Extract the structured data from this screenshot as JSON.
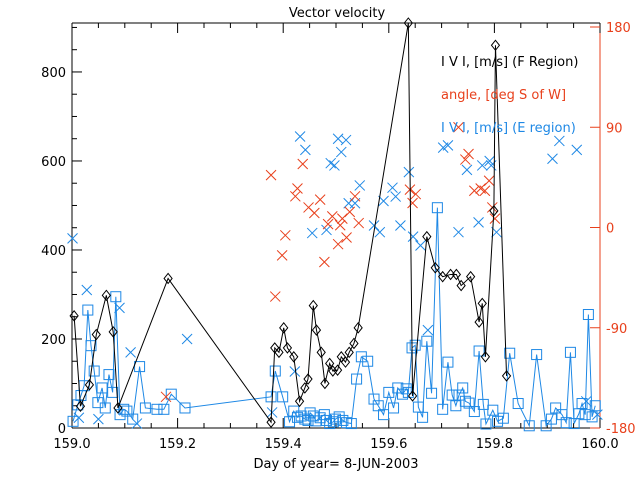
{
  "colors": {
    "f_region": "#000000",
    "angle": "#e8401c",
    "e_region": "#1e88e5"
  },
  "chart_data": {
    "type": "scatter",
    "title": "Vector velocity",
    "xlabel": "Day of year= 8-JUN-2003",
    "ylabel": "",
    "y2label": "",
    "xlim": [
      159.0,
      160.0
    ],
    "ylim": [
      0,
      910
    ],
    "y2lim": [
      -180,
      180
    ],
    "x_ticks": [
      "159.0",
      "159.2",
      "159.4",
      "159.6",
      "159.8",
      "160.0"
    ],
    "x_tick_values": [
      159.0,
      159.2,
      159.4,
      159.6,
      159.8,
      160.0
    ],
    "y_ticks": [
      "0",
      "200",
      "400",
      "600",
      "800"
    ],
    "y_tick_values": [
      0,
      200,
      400,
      600,
      800
    ],
    "y2_ticks": [
      "180",
      "90",
      "0",
      "-90",
      "-180"
    ],
    "y2_tick_values": [
      180,
      90,
      0,
      -90,
      -180
    ],
    "legend_position": "top-right",
    "legend": [
      {
        "label": "I V I, [m/s] (F Region)",
        "series": "f_region"
      },
      {
        "label": "angle, [deg S of W]",
        "series": "angle"
      },
      {
        "label": "I V I, [m/s] (E region)",
        "series": "e_region"
      }
    ],
    "series": [
      {
        "name": "I V I, [m/s] (F Region)",
        "key": "f_region",
        "axis": "left",
        "marker": "diamond",
        "line": true,
        "x": [
          159.004,
          159.016,
          159.033,
          159.046,
          159.065,
          159.078,
          159.087,
          159.182,
          159.377,
          159.384,
          159.392,
          159.401,
          159.408,
          159.42,
          159.431,
          159.441,
          159.447,
          159.457,
          159.463,
          159.472,
          159.479,
          159.488,
          159.494,
          159.503,
          159.51,
          159.518,
          159.525,
          159.534,
          159.542,
          159.637,
          159.645,
          159.672,
          159.688,
          159.702,
          159.717,
          159.728,
          159.737,
          159.755,
          159.771,
          159.777,
          159.783,
          159.799,
          159.802,
          159.823
        ],
        "y": [
          252,
          49,
          97,
          210,
          298,
          216,
          45,
          336,
          13,
          180,
          170,
          225,
          180,
          160,
          60,
          90,
          110,
          275,
          220,
          170,
          100,
          145,
          128,
          130,
          160,
          148,
          170,
          190,
          225,
          910,
          72,
          430,
          360,
          340,
          345,
          345,
          320,
          340,
          238,
          280,
          160,
          488,
          860,
          117
        ]
      },
      {
        "name": "angle, [deg S of W]",
        "key": "angle",
        "axis": "right",
        "marker": "x",
        "line": false,
        "x": [
          159.178,
          159.377,
          159.385,
          159.398,
          159.404,
          159.423,
          159.427,
          159.437,
          159.448,
          159.459,
          159.47,
          159.478,
          159.485,
          159.493,
          159.504,
          159.508,
          159.512,
          159.52,
          159.526,
          159.536,
          159.543,
          159.64,
          159.645,
          159.651,
          159.732,
          159.745,
          159.751,
          159.762,
          159.774,
          159.782,
          159.79,
          159.796,
          159.801
        ],
        "y": [
          -152,
          47,
          -62,
          -25,
          -7,
          28,
          35,
          57,
          18,
          13,
          25,
          -31,
          3,
          10,
          -15,
          2,
          8,
          -9,
          14,
          28,
          4,
          34,
          22,
          30,
          90,
          61,
          66,
          33,
          35,
          33,
          42,
          18,
          8
        ]
      },
      {
        "name": "I V I, [m/s] (E region)",
        "key": "e_region",
        "axis": "left",
        "marker": "square",
        "line": true,
        "x": [
          159.002,
          159.011,
          159.017,
          159.023,
          159.03,
          159.036,
          159.042,
          159.049,
          159.057,
          159.063,
          159.07,
          159.077,
          159.083,
          159.091,
          159.098,
          159.104,
          159.115,
          159.128,
          159.139,
          159.161,
          159.174,
          159.188,
          159.214,
          159.377,
          159.385,
          159.399,
          159.412,
          159.42,
          159.427,
          159.434,
          159.441,
          159.447,
          159.451,
          159.457,
          159.462,
          159.47,
          159.478,
          159.482,
          159.488,
          159.495,
          159.499,
          159.506,
          159.513,
          159.52,
          159.529,
          159.539,
          159.548,
          159.56,
          159.572,
          159.58,
          159.59,
          159.6,
          159.609,
          159.617,
          159.626,
          159.633,
          159.637,
          159.644,
          159.65,
          159.656,
          159.664,
          159.672,
          159.681,
          159.692,
          159.702,
          159.712,
          159.72,
          159.727,
          159.733,
          159.74,
          159.745,
          159.752,
          159.762,
          159.771,
          159.779,
          159.784,
          159.797,
          159.806,
          159.817,
          159.829,
          159.845,
          159.866,
          159.88,
          159.898,
          159.908,
          159.916,
          159.928,
          159.936,
          159.944,
          159.951,
          159.96,
          159.966,
          159.972,
          159.978,
          159.985,
          159.991
        ],
        "y": [
          15,
          52,
          73,
          95,
          265,
          185,
          128,
          57,
          90,
          45,
          120,
          80,
          295,
          30,
          42,
          38,
          20,
          138,
          45,
          42,
          42,
          76,
          45,
          70,
          128,
          70,
          14,
          38,
          24,
          27,
          20,
          17,
          34,
          27,
          16,
          23,
          30,
          17,
          10,
          14,
          20,
          25,
          17,
          12,
          10,
          110,
          160,
          150,
          65,
          50,
          30,
          80,
          45,
          90,
          76,
          88,
          80,
          180,
          186,
          47,
          24,
          195,
          78,
          495,
          42,
          148,
          74,
          50,
          74,
          90,
          60,
          56,
          37,
          173,
          53,
          9,
          40,
          15,
          22,
          168,
          55,
          5,
          165,
          5,
          20,
          45,
          30,
          12,
          170,
          10,
          32,
          55,
          30,
          255,
          25,
          50
        ]
      },
      {
        "name": "E region velocity angle (unconnected crosses)",
        "key": "e_cross",
        "axis": "left",
        "marker": "x",
        "line": false,
        "x": [
          159.001,
          159.013,
          159.028,
          159.05,
          159.09,
          159.111,
          159.123,
          159.218,
          159.379,
          159.422,
          159.432,
          159.442,
          159.455,
          159.482,
          159.49,
          159.497,
          159.504,
          159.51,
          159.519,
          159.524,
          159.536,
          159.545,
          159.572,
          159.583,
          159.59,
          159.607,
          159.613,
          159.622,
          159.638,
          159.646,
          159.66,
          159.674,
          159.703,
          159.712,
          159.732,
          159.748,
          159.77,
          159.777,
          159.791,
          159.794,
          159.804,
          159.91,
          159.923,
          159.956,
          159.974,
          159.995
        ],
        "y": [
          426,
          23,
          310,
          20,
          270,
          170,
          10,
          200,
          35,
          127,
          655,
          625,
          438,
          445,
          595,
          590,
          650,
          620,
          647,
          505,
          505,
          545,
          455,
          440,
          510,
          540,
          520,
          455,
          575,
          430,
          410,
          220,
          630,
          635,
          440,
          580,
          462,
          590,
          600,
          590,
          440,
          605,
          645,
          625,
          60,
          30
        ]
      }
    ]
  }
}
